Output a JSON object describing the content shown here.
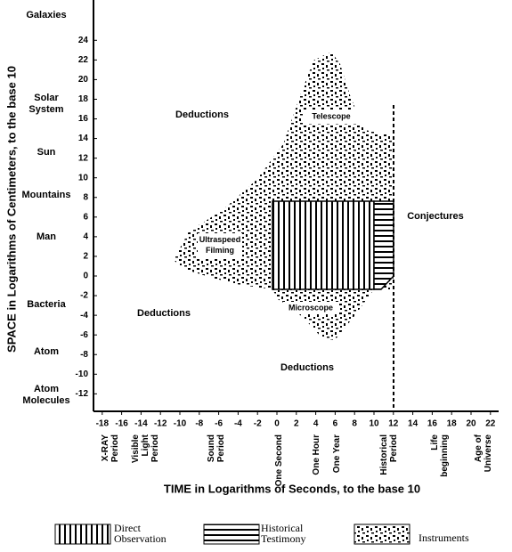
{
  "y_axis": {
    "label": "SPACE in Logarithms of Centimeters, to the base 10",
    "ticks": [
      24,
      22,
      20,
      18,
      16,
      14,
      12,
      10,
      8,
      6,
      4,
      2,
      0,
      -2,
      -4,
      -6,
      -8,
      -10,
      -12
    ]
  },
  "x_axis": {
    "label": "TIME in Logarithms of Seconds, to the base 10",
    "ticks": [
      -18,
      -16,
      -14,
      -12,
      -10,
      -8,
      -6,
      -4,
      -2,
      0,
      2,
      4,
      6,
      8,
      10,
      12,
      14,
      16,
      18,
      20,
      22
    ]
  },
  "scale_labels": [
    [
      "Galaxies"
    ],
    [
      "Solar",
      "System"
    ],
    [
      "Sun"
    ],
    [
      "Mountains"
    ],
    [
      "Man"
    ],
    [
      "Bacteria"
    ],
    [
      "Atom"
    ],
    [
      "Atom",
      "Molecules"
    ]
  ],
  "period_labels": [
    [
      "X-RAY",
      "Period"
    ],
    [
      "Visible",
      "Light",
      "Period"
    ],
    [
      "Sound",
      "Period"
    ],
    [
      "One Second"
    ],
    [
      "One Hour"
    ],
    [
      "One Year"
    ],
    [
      "Historical",
      "Period"
    ],
    [
      "Life",
      "beginning"
    ],
    [
      "Age of",
      "Universe"
    ]
  ],
  "region_labels": {
    "deductions_top": "Deductions",
    "telescope": "Telescope",
    "ultraspeed": [
      "Ultraspeed",
      "Filming"
    ],
    "conjectures": "Conjectures",
    "deductions_left": "Deductions",
    "microscope": "Microscope",
    "deductions_bottom": "Deductions"
  },
  "legend": [
    [
      "Direct",
      "Observation"
    ],
    [
      "Historical",
      "Testimony"
    ],
    [
      "Instruments"
    ]
  ]
}
